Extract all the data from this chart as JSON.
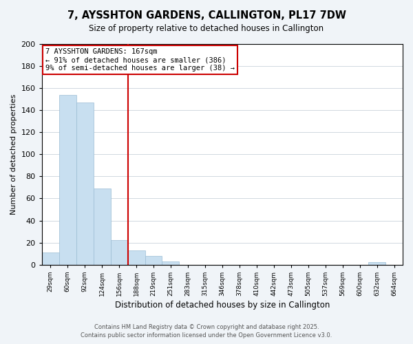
{
  "title": "7, AYSSHTON GARDENS, CALLINGTON, PL17 7DW",
  "subtitle": "Size of property relative to detached houses in Callington",
  "xlabel": "Distribution of detached houses by size in Callington",
  "ylabel": "Number of detached properties",
  "bar_color": "#c8dff0",
  "bar_edgecolor": "#9abcd4",
  "categories": [
    "29sqm",
    "60sqm",
    "92sqm",
    "124sqm",
    "156sqm",
    "188sqm",
    "219sqm",
    "251sqm",
    "283sqm",
    "315sqm",
    "346sqm",
    "378sqm",
    "410sqm",
    "442sqm",
    "473sqm",
    "505sqm",
    "537sqm",
    "569sqm",
    "600sqm",
    "632sqm",
    "664sqm"
  ],
  "values": [
    11,
    154,
    147,
    69,
    22,
    13,
    8,
    3,
    0,
    0,
    0,
    0,
    0,
    0,
    0,
    0,
    0,
    0,
    0,
    2,
    0
  ],
  "vline_index": 4.5,
  "vline_color": "#cc0000",
  "annotation_line1": "7 AYSSHTON GARDENS: 167sqm",
  "annotation_line2": "← 91% of detached houses are smaller (386)",
  "annotation_line3": "9% of semi-detached houses are larger (38) →",
  "annotation_box_color": "white",
  "annotation_box_edgecolor": "#cc0000",
  "ylim": [
    0,
    200
  ],
  "yticks": [
    0,
    20,
    40,
    60,
    80,
    100,
    120,
    140,
    160,
    180,
    200
  ],
  "footer1": "Contains HM Land Registry data © Crown copyright and database right 2025.",
  "footer2": "Contains public sector information licensed under the Open Government Licence v3.0.",
  "background_color": "#f0f4f8",
  "plot_background": "white",
  "grid_color": "#d0d8e0"
}
